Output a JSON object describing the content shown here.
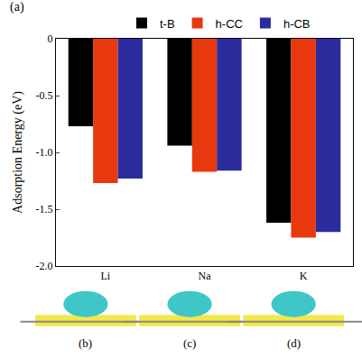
{
  "chart_data": {
    "type": "bar",
    "y_label": "Adsorption Energy (eV)",
    "categories": [
      "Li",
      "Na",
      "K"
    ],
    "series": [
      {
        "name": "t-B",
        "color": "#000000",
        "values": [
          -0.77,
          -0.94,
          -1.62
        ]
      },
      {
        "name": "h-CC",
        "color": "#e8380d",
        "values": [
          -1.27,
          -1.17,
          -1.75
        ]
      },
      {
        "name": "h-CB",
        "color": "#2b2b9e",
        "values": [
          -1.23,
          -1.16,
          -1.7
        ]
      }
    ],
    "ylim": [
      -2.0,
      0
    ],
    "yticks": [
      0,
      -0.5,
      {
        "value": -1.0,
        "label": "-1.0"
      },
      -1.5,
      {
        "value": -2.0,
        "label": "-2.0"
      }
    ],
    "grid": false,
    "legend": "top",
    "annotations": [
      "(a)",
      "(b)",
      "(c)",
      "(d)"
    ]
  }
}
